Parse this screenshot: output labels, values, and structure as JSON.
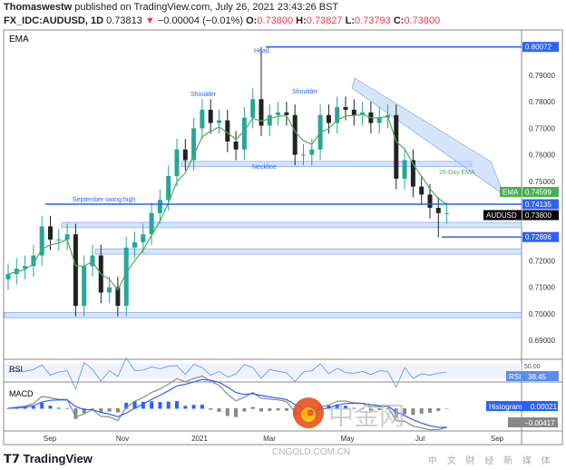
{
  "header": {
    "author": "Thomaswestw",
    "published": "published on TradingView.com, July 26, 2021 23:43:26 BST",
    "symbol": "FX_IDC:AUDUSD, 1D",
    "last": "0.73813",
    "change": "−0.00004 (−0.01%)",
    "o_label": "O:",
    "o": "0.73800",
    "h_label": "H:",
    "h": "0.73827",
    "l_label": "L:",
    "l": "0.73793",
    "c_label": "C:",
    "c": "0.73800"
  },
  "footer": {
    "brand": "TradingView"
  },
  "watermark": {
    "text": "中金网",
    "domain": "CNGOLD.COM.CN",
    "tagline": "中 文 财 经 新 媒 体"
  },
  "colors": {
    "up": "#26a69a",
    "down": "#222222",
    "ema": "#4caf50",
    "level": "#2962ff",
    "zone": "#bbd2f7",
    "rsi": "#5b8def",
    "macd": "#2962ff",
    "signal": "#888888"
  },
  "chart_data": {
    "type": "candlestick",
    "indicator_label": "EMA",
    "ylim": [
      0.683,
      0.805
    ],
    "yticks": [
      "0.69000",
      "0.70000",
      "0.71000",
      "0.72000",
      "0.73000",
      "0.74000",
      "0.75000",
      "0.76000",
      "0.77000",
      "0.78000",
      "0.79000"
    ],
    "xticks": [
      "Sep",
      "Nov",
      "2021",
      "Mar",
      "May",
      "Jul",
      "Sep"
    ],
    "weekly_closes": [
      0.715,
      0.717,
      0.718,
      0.722,
      0.733,
      0.728,
      0.728,
      0.73,
      0.703,
      0.718,
      0.722,
      0.708,
      0.71,
      0.703,
      0.725,
      0.727,
      0.73,
      0.738,
      0.743,
      0.752,
      0.762,
      0.758,
      0.77,
      0.777,
      0.772,
      0.773,
      0.765,
      0.762,
      0.774,
      0.781,
      0.771,
      0.775,
      0.776,
      0.775,
      0.76,
      0.76,
      0.762,
      0.775,
      0.772,
      0.778,
      0.777,
      0.775,
      0.776,
      0.772,
      0.774,
      0.775,
      0.751,
      0.758,
      0.748,
      0.745,
      0.74,
      0.738,
      0.738
    ],
    "price_labels": [
      {
        "text": "0.80072",
        "value": 0.80072,
        "kind": "level"
      },
      {
        "text": "0.74599",
        "value": 0.74599,
        "kind": "ema",
        "tag": "EMA"
      },
      {
        "text": "0.74135",
        "value": 0.74135,
        "kind": "level"
      },
      {
        "text": "0.73800",
        "value": 0.738,
        "kind": "price",
        "tag": "AUDUSD"
      },
      {
        "text": "0.72896",
        "value": 0.72896,
        "kind": "level"
      }
    ],
    "annotations": [
      "Head",
      "Shoulder",
      "Shoulder",
      "Neckline",
      "September swing high",
      "26-Day EMA"
    ],
    "zones": [
      [
        0.7555,
        0.7575
      ],
      [
        0.7325,
        0.7345
      ],
      [
        0.7225,
        0.7245
      ],
      [
        0.6985,
        0.7005
      ]
    ],
    "rsi": {
      "label": "RSI",
      "value": "38.45",
      "upper_tick": "50.00"
    },
    "macd": {
      "label": "MACD",
      "histogram_label": "Histogram",
      "histogram_value": "0.00021",
      "macd_value": "−0.00417"
    }
  }
}
